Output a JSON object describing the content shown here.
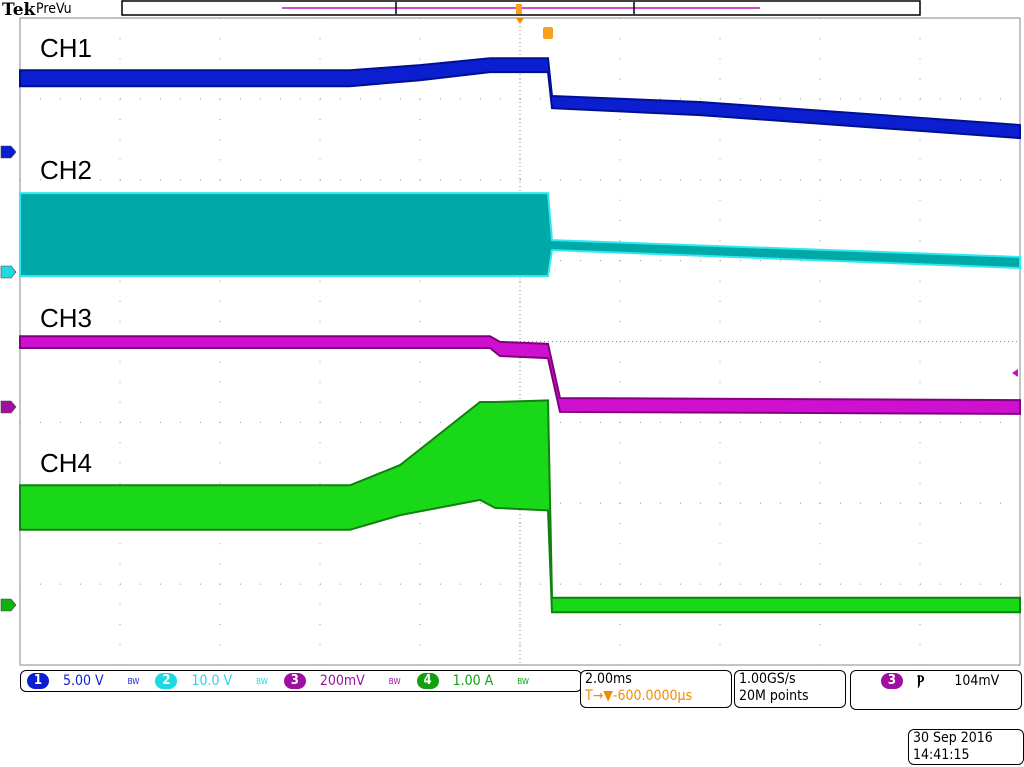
{
  "header": {
    "brand": "Tek",
    "mode": "PreVu"
  },
  "labels": {
    "ch1": "CH1",
    "ch2": "CH2",
    "ch3": "CH3",
    "ch4": "CH4"
  },
  "channels": [
    {
      "num": "1",
      "scale": "5.00 V",
      "bw": "BW",
      "color": "#0b1fd0"
    },
    {
      "num": "2",
      "scale": "10.0 V",
      "bw": "BW",
      "color": "#1fd8e0"
    },
    {
      "num": "3",
      "scale": "200mV",
      "bw": "BW",
      "color": "#a010a0"
    },
    {
      "num": "4",
      "scale": "1.00 A",
      "bw": "BW",
      "color": "#10b010"
    }
  ],
  "timebase": {
    "scale": "2.00ms",
    "trigger_pos": "T→▼-600.0000µs"
  },
  "acquisition": {
    "rate": "1.00GS/s",
    "length": "20M points"
  },
  "trigger": {
    "source": "3",
    "slope": "falling",
    "slope_glyph": "Ⲣ",
    "level": "104mV"
  },
  "datetime": {
    "date": "30 Sep  2016",
    "time": "14:41:15"
  },
  "chart_data": {
    "type": "line",
    "x_unit": "ms",
    "x_per_div": 2,
    "divisions_x": 10,
    "divisions_y": 8,
    "grid": true,
    "xlim": [
      -10.56,
      9.44
    ],
    "series": [
      {
        "name": "CH1",
        "unit": "V",
        "color": "#0b1fd0",
        "points": [
          [
            -10.56,
            4.07,
            5.06
          ],
          [
            -3.96,
            4.07,
            5.06
          ],
          [
            -2.56,
            4.44,
            5.37
          ],
          [
            -1.16,
            4.94,
            5.8
          ],
          [
            0,
            4.94,
            5.8
          ],
          [
            0.08,
            2.71,
            3.46
          ],
          [
            3.04,
            2.28,
            3.09
          ],
          [
            9.44,
            0.86,
            1.67
          ]
        ]
      },
      {
        "name": "CH2",
        "unit": "V",
        "color": "#1fd8e0",
        "points": [
          [
            -10.56,
            -0.49,
            9.76
          ],
          [
            0,
            -0.49,
            9.76
          ],
          [
            0.08,
            2.72,
            3.95
          ],
          [
            9.44,
            0.49,
            1.85
          ]
        ]
      },
      {
        "name": "CH3",
        "unit": "V",
        "color": "#d010d0",
        "points": [
          [
            -10.56,
            0.146,
            0.175
          ],
          [
            -1.16,
            0.146,
            0.175
          ],
          [
            -0.96,
            0.126,
            0.161
          ],
          [
            0,
            0.121,
            0.156
          ],
          [
            0.24,
            -0.012,
            0.022
          ],
          [
            9.44,
            -0.017,
            0.017
          ]
        ]
      },
      {
        "name": "CH4",
        "unit": "A",
        "color": "#10d010",
        "points": [
          [
            -10.56,
            0.93,
            1.48
          ],
          [
            -3.96,
            0.93,
            1.48
          ],
          [
            -2.96,
            1.11,
            1.73
          ],
          [
            -1.36,
            1.3,
            2.51
          ],
          [
            -1.06,
            1.2,
            2.51
          ],
          [
            0,
            1.17,
            2.53
          ],
          [
            0.08,
            -0.09,
            0.09
          ],
          [
            9.44,
            -0.09,
            0.09
          ]
        ]
      }
    ]
  }
}
